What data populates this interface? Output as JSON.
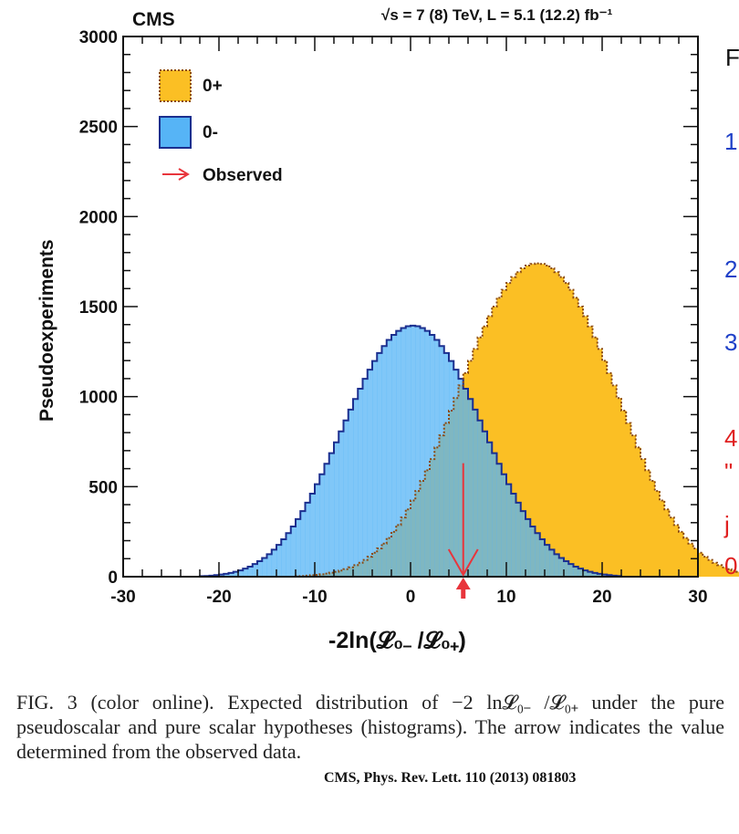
{
  "chart_data": {
    "type": "histogram",
    "header_left": "CMS",
    "header_right": "√s = 7 (8) TeV, L = 5.1 (12.2) fb⁻¹",
    "xlabel": "-2ln(𝓛₀₋ /𝓛₀₊)",
    "ylabel": "Pseudoexperiments",
    "xlim": [
      -30,
      30
    ],
    "ylim": [
      0,
      3000
    ],
    "x_ticks": [
      "-30",
      "-20",
      "-10",
      "0",
      "10",
      "20",
      "30"
    ],
    "y_ticks": [
      "0",
      "500",
      "1000",
      "1500",
      "2000",
      "2500",
      "3000"
    ],
    "legend": [
      {
        "label": "0+",
        "color": "#fbbf24",
        "edge": "#8b4a12",
        "style": "dotted"
      },
      {
        "label": "0-",
        "color": "#56b4f6",
        "edge": "#1b2f8f",
        "style": "solid"
      },
      {
        "label": "Observed",
        "color": "#e8353c",
        "style": "arrow"
      }
    ],
    "bin_width": 0.5,
    "series": [
      {
        "name": "0+",
        "bin_start": -12.0,
        "values": [
          3,
          4,
          6,
          8,
          10,
          13,
          17,
          22,
          27,
          34,
          42,
          52,
          64,
          77,
          93,
          111,
          133,
          157,
          184,
          215,
          249,
          287,
          329,
          374,
          423,
          476,
          532,
          591,
          653,
          718,
          785,
          853,
          922,
          992,
          1062,
          1131,
          1199,
          1265,
          1329,
          1390,
          1447,
          1500,
          1549,
          1593,
          1631,
          1664,
          1691,
          1713,
          1728,
          1737,
          1740,
          1737,
          1728,
          1713,
          1691,
          1664,
          1631,
          1593,
          1549,
          1500,
          1447,
          1390,
          1329,
          1265,
          1199,
          1131,
          1062,
          992,
          922,
          853,
          785,
          718,
          653,
          591,
          532,
          476,
          423,
          374,
          329,
          287,
          249,
          215,
          184,
          157,
          133,
          111,
          93,
          77,
          64,
          52,
          42,
          34,
          27,
          22,
          17,
          13,
          10,
          8,
          6
        ]
      },
      {
        "name": "0-",
        "bin_start": -22.0,
        "values": [
          3,
          4,
          6,
          9,
          12,
          16,
          21,
          27,
          35,
          45,
          56,
          70,
          86,
          104,
          125,
          150,
          177,
          208,
          242,
          279,
          320,
          364,
          411,
          461,
          514,
          569,
          627,
          686,
          746,
          807,
          868,
          928,
          987,
          1044,
          1099,
          1150,
          1198,
          1242,
          1281,
          1315,
          1343,
          1365,
          1381,
          1391,
          1394,
          1391,
          1381,
          1365,
          1343,
          1315,
          1281,
          1242,
          1198,
          1150,
          1099,
          1044,
          987,
          928,
          868,
          807,
          746,
          686,
          627,
          569,
          514,
          461,
          411,
          364,
          320,
          279,
          242,
          208,
          177,
          150,
          125,
          104,
          86,
          70,
          56,
          45,
          35,
          27,
          21,
          16,
          12,
          9,
          6,
          4
        ]
      }
    ],
    "observed": {
      "label": "Observed",
      "x": 5.5
    }
  },
  "caption": {
    "text": "FIG. 3 (color online). Expected distribution of −2 ln𝓛₀₋ /𝓛₀₊ under the pure pseudoscalar and pure scalar hypotheses (histograms). The arrow indicates the value determined from the observed data.",
    "citation": "CMS, Phys. Rev. Lett. 110 (2013) 081803"
  },
  "side_fragments": [
    {
      "char": "F",
      "color": "#111111"
    },
    {
      "char": "1",
      "color": "#1e40c8"
    },
    {
      "char": "2",
      "color": "#1e40c8"
    },
    {
      "char": "3",
      "color": "#1e40c8"
    },
    {
      "char": "4",
      "color": "#e02020"
    },
    {
      "char": "\"",
      "color": "#e02020"
    },
    {
      "char": "j",
      "color": "#e02020"
    },
    {
      "char": "0",
      "color": "#e02020"
    }
  ]
}
